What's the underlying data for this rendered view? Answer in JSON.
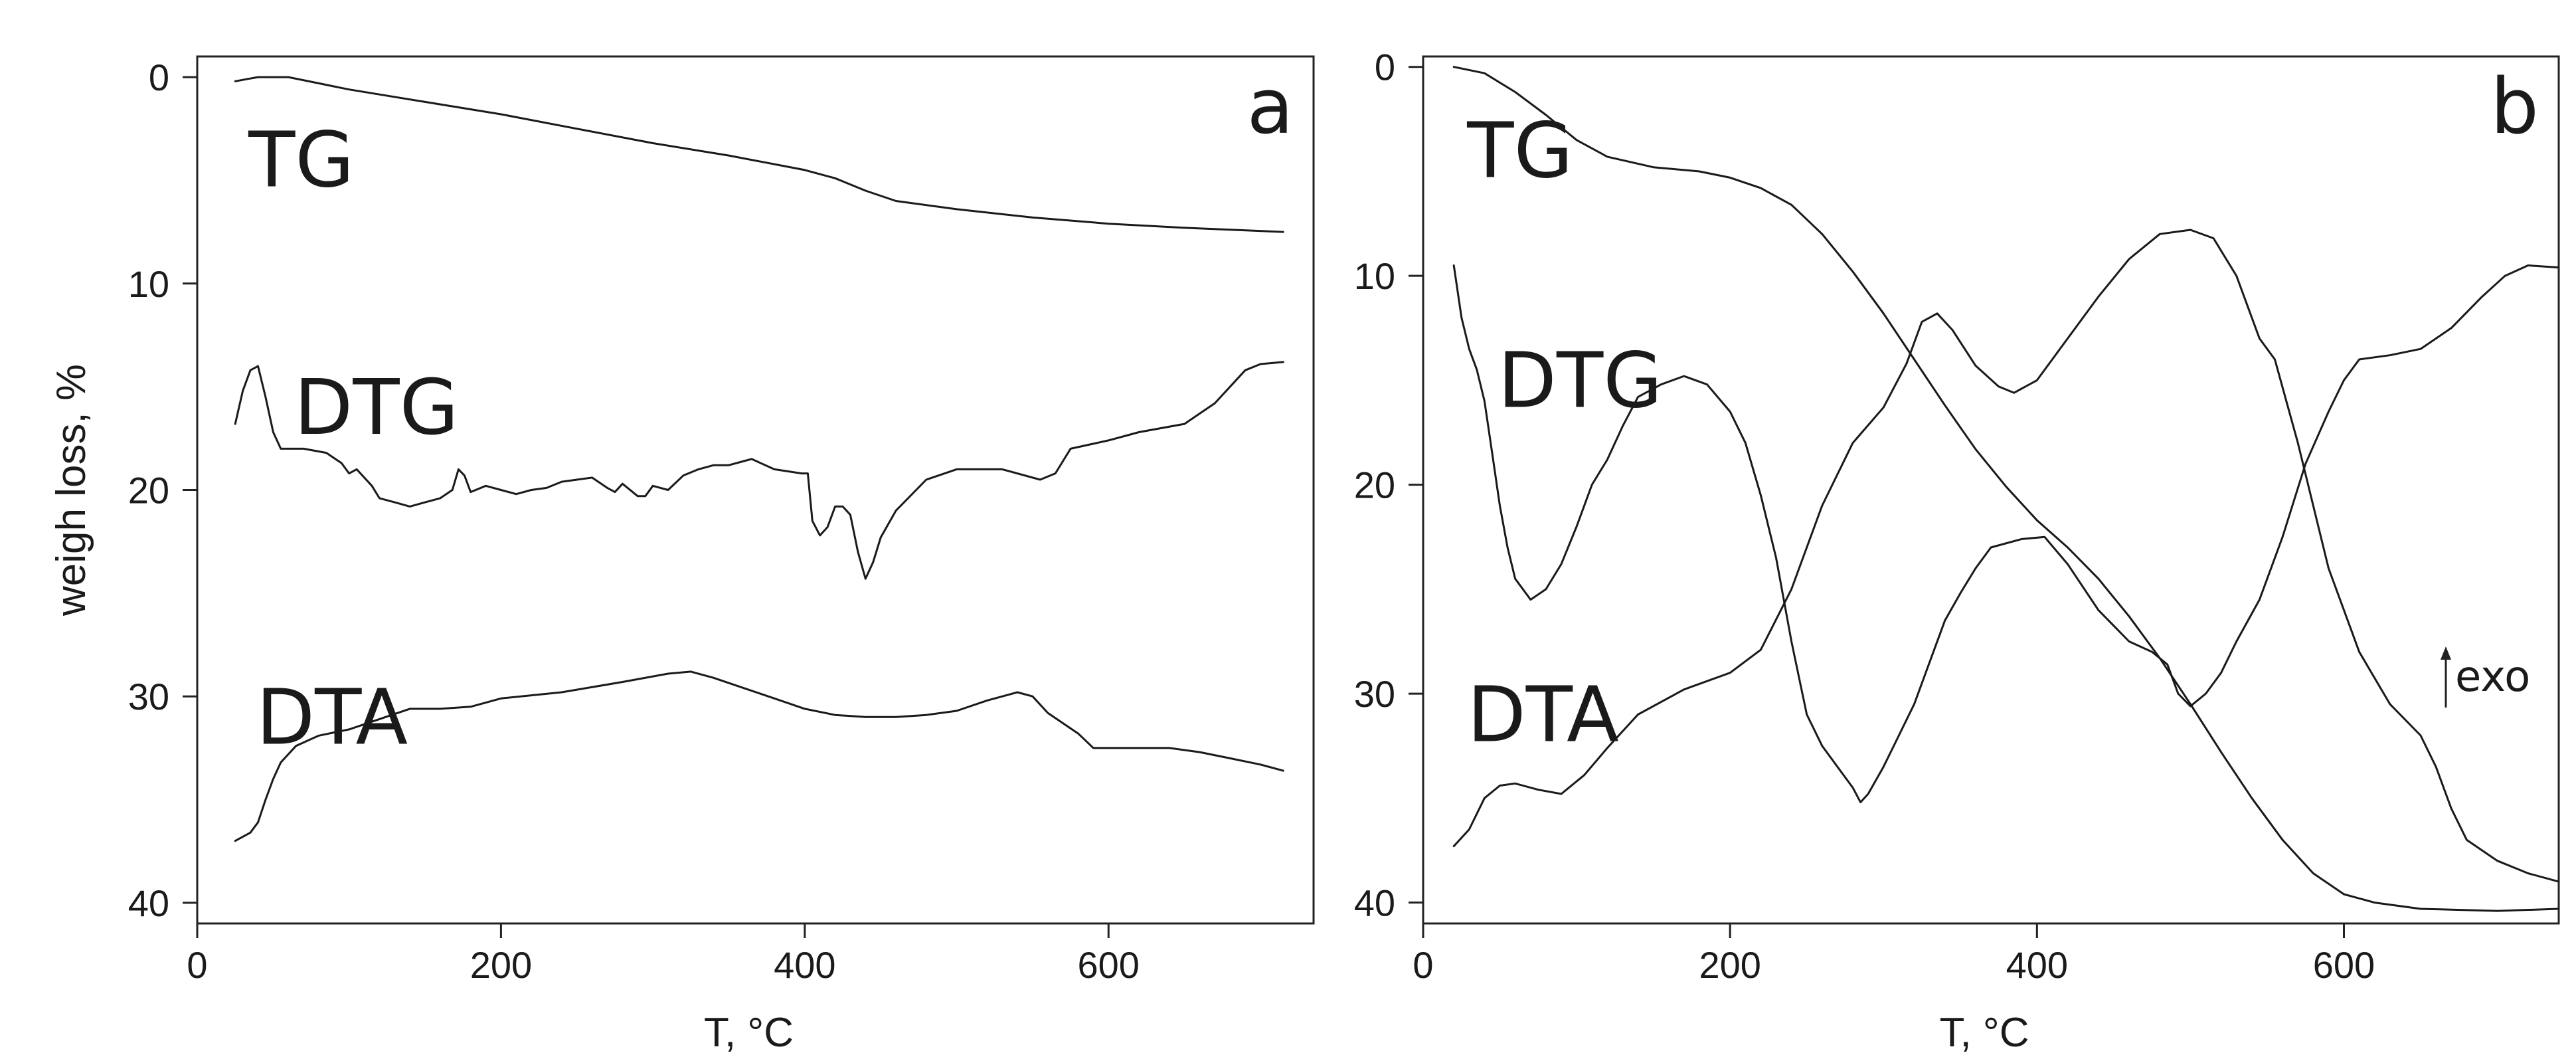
{
  "chart_data": [
    {
      "type": "line",
      "panel_label": "a",
      "xlabel": "T, °C",
      "ylabel": "weigh loss, %",
      "xlim": [
        0,
        735
      ],
      "ylim": [
        41,
        -1
      ],
      "xticks": [
        0,
        200,
        400,
        600
      ],
      "yticks": [
        0,
        10,
        20,
        30,
        40
      ],
      "grid": false,
      "series": [
        {
          "name": "TG",
          "label_at": [
            25,
            4
          ],
          "points": [
            [
              25,
              0.2
            ],
            [
              40,
              0
            ],
            [
              60,
              0
            ],
            [
              80,
              0.3
            ],
            [
              100,
              0.6
            ],
            [
              150,
              1.2
            ],
            [
              200,
              1.8
            ],
            [
              250,
              2.5
            ],
            [
              300,
              3.2
            ],
            [
              350,
              3.8
            ],
            [
              400,
              4.5
            ],
            [
              420,
              4.9
            ],
            [
              440,
              5.5
            ],
            [
              460,
              6.0
            ],
            [
              500,
              6.4
            ],
            [
              550,
              6.8
            ],
            [
              600,
              7.1
            ],
            [
              650,
              7.3
            ],
            [
              715,
              7.5
            ]
          ]
        },
        {
          "name": "DTG",
          "label_at": [
            55,
            16
          ],
          "points": [
            [
              25,
              16.8
            ],
            [
              30,
              15.2
            ],
            [
              35,
              14.2
            ],
            [
              40,
              14.0
            ],
            [
              45,
              15.5
            ],
            [
              50,
              17.2
            ],
            [
              55,
              18.0
            ],
            [
              70,
              18.0
            ],
            [
              85,
              18.2
            ],
            [
              95,
              18.7
            ],
            [
              100,
              19.2
            ],
            [
              105,
              19.0
            ],
            [
              115,
              19.8
            ],
            [
              120,
              20.4
            ],
            [
              130,
              20.6
            ],
            [
              140,
              20.8
            ],
            [
              150,
              20.6
            ],
            [
              160,
              20.4
            ],
            [
              168,
              20.0
            ],
            [
              172,
              19.0
            ],
            [
              176,
              19.3
            ],
            [
              180,
              20.1
            ],
            [
              190,
              19.8
            ],
            [
              200,
              20.0
            ],
            [
              210,
              20.2
            ],
            [
              220,
              20.0
            ],
            [
              230,
              19.9
            ],
            [
              240,
              19.6
            ],
            [
              250,
              19.5
            ],
            [
              260,
              19.4
            ],
            [
              270,
              19.9
            ],
            [
              275,
              20.1
            ],
            [
              280,
              19.7
            ],
            [
              290,
              20.3
            ],
            [
              295,
              20.3
            ],
            [
              300,
              19.8
            ],
            [
              310,
              20.0
            ],
            [
              320,
              19.3
            ],
            [
              330,
              19.0
            ],
            [
              340,
              18.8
            ],
            [
              350,
              18.8
            ],
            [
              360,
              18.6
            ],
            [
              365,
              18.5
            ],
            [
              380,
              19.0
            ],
            [
              398,
              19.2
            ],
            [
              402,
              19.2
            ],
            [
              405,
              21.5
            ],
            [
              410,
              22.2
            ],
            [
              415,
              21.8
            ],
            [
              420,
              20.8
            ],
            [
              425,
              20.8
            ],
            [
              430,
              21.2
            ],
            [
              435,
              23.0
            ],
            [
              440,
              24.3
            ],
            [
              445,
              23.5
            ],
            [
              450,
              22.3
            ],
            [
              460,
              21.0
            ],
            [
              480,
              19.5
            ],
            [
              500,
              19.0
            ],
            [
              530,
              19.0
            ],
            [
              555,
              19.5
            ],
            [
              565,
              19.2
            ],
            [
              575,
              18.0
            ],
            [
              600,
              17.6
            ],
            [
              620,
              17.2
            ],
            [
              650,
              16.8
            ],
            [
              670,
              15.8
            ],
            [
              690,
              14.2
            ],
            [
              700,
              13.9
            ],
            [
              715,
              13.8
            ]
          ]
        },
        {
          "name": "DTA",
          "label_at": [
            30,
            31
          ],
          "points": [
            [
              25,
              37.0
            ],
            [
              35,
              36.6
            ],
            [
              40,
              36.1
            ],
            [
              45,
              35.0
            ],
            [
              50,
              34.0
            ],
            [
              55,
              33.2
            ],
            [
              65,
              32.4
            ],
            [
              80,
              31.9
            ],
            [
              100,
              31.6
            ],
            [
              120,
              31.1
            ],
            [
              140,
              30.6
            ],
            [
              160,
              30.6
            ],
            [
              180,
              30.5
            ],
            [
              200,
              30.1
            ],
            [
              240,
              29.8
            ],
            [
              280,
              29.3
            ],
            [
              310,
              28.9
            ],
            [
              325,
              28.8
            ],
            [
              340,
              29.1
            ],
            [
              360,
              29.6
            ],
            [
              380,
              30.1
            ],
            [
              400,
              30.6
            ],
            [
              420,
              30.9
            ],
            [
              440,
              31.0
            ],
            [
              460,
              31.0
            ],
            [
              480,
              30.9
            ],
            [
              500,
              30.7
            ],
            [
              520,
              30.2
            ],
            [
              540,
              29.8
            ],
            [
              550,
              30.0
            ],
            [
              560,
              30.8
            ],
            [
              580,
              31.8
            ],
            [
              590,
              32.5
            ],
            [
              600,
              32.5
            ],
            [
              640,
              32.5
            ],
            [
              660,
              32.7
            ],
            [
              680,
              33.0
            ],
            [
              700,
              33.3
            ],
            [
              715,
              33.6
            ]
          ]
        }
      ]
    },
    {
      "type": "line",
      "panel_label": "b",
      "xlabel": "T, °C",
      "ylabel": "",
      "xlim": [
        0,
        740
      ],
      "ylim": [
        41,
        -0.5
      ],
      "xticks": [
        0,
        200,
        400,
        600
      ],
      "yticks": [
        0,
        10,
        20,
        30,
        40
      ],
      "grid": false,
      "annotation": "exo",
      "series": [
        {
          "name": "TG",
          "label_at": [
            20,
            4
          ],
          "points": [
            [
              20,
              0
            ],
            [
              40,
              0.3
            ],
            [
              60,
              1.2
            ],
            [
              80,
              2.3
            ],
            [
              100,
              3.5
            ],
            [
              120,
              4.3
            ],
            [
              150,
              4.8
            ],
            [
              180,
              5.0
            ],
            [
              200,
              5.3
            ],
            [
              220,
              5.8
            ],
            [
              240,
              6.6
            ],
            [
              260,
              8.0
            ],
            [
              280,
              9.8
            ],
            [
              300,
              11.8
            ],
            [
              320,
              14.0
            ],
            [
              340,
              16.2
            ],
            [
              360,
              18.3
            ],
            [
              380,
              20.1
            ],
            [
              400,
              21.7
            ],
            [
              420,
              23.0
            ],
            [
              440,
              24.5
            ],
            [
              460,
              26.3
            ],
            [
              480,
              28.3
            ],
            [
              500,
              30.5
            ],
            [
              520,
              32.8
            ],
            [
              540,
              35.0
            ],
            [
              560,
              37.0
            ],
            [
              580,
              38.6
            ],
            [
              600,
              39.6
            ],
            [
              620,
              40.0
            ],
            [
              650,
              40.3
            ],
            [
              700,
              40.4
            ],
            [
              740,
              40.3
            ]
          ]
        },
        {
          "name": "DTG",
          "label_at": [
            40,
            15
          ],
          "points": [
            [
              20,
              9.5
            ],
            [
              25,
              12.0
            ],
            [
              30,
              13.5
            ],
            [
              35,
              14.5
            ],
            [
              40,
              16.0
            ],
            [
              45,
              18.5
            ],
            [
              50,
              21.0
            ],
            [
              55,
              23.0
            ],
            [
              60,
              24.5
            ],
            [
              70,
              25.5
            ],
            [
              80,
              25.0
            ],
            [
              90,
              23.8
            ],
            [
              100,
              22.0
            ],
            [
              110,
              20.0
            ],
            [
              120,
              18.8
            ],
            [
              130,
              17.2
            ],
            [
              140,
              15.8
            ],
            [
              155,
              15.2
            ],
            [
              170,
              14.8
            ],
            [
              185,
              15.2
            ],
            [
              200,
              16.5
            ],
            [
              210,
              18.0
            ],
            [
              220,
              20.5
            ],
            [
              230,
              23.5
            ],
            [
              240,
              27.5
            ],
            [
              250,
              31.0
            ],
            [
              260,
              32.5
            ],
            [
              270,
              33.5
            ],
            [
              280,
              34.5
            ],
            [
              285,
              35.2
            ],
            [
              290,
              34.8
            ],
            [
              300,
              33.5
            ],
            [
              310,
              32.0
            ],
            [
              320,
              30.5
            ],
            [
              330,
              28.5
            ],
            [
              340,
              26.5
            ],
            [
              350,
              25.2
            ],
            [
              360,
              24.0
            ],
            [
              370,
              23.0
            ],
            [
              390,
              22.6
            ],
            [
              405,
              22.5
            ],
            [
              420,
              23.8
            ],
            [
              440,
              26.0
            ],
            [
              460,
              27.5
            ],
            [
              475,
              28.0
            ],
            [
              485,
              28.6
            ],
            [
              492,
              30.0
            ],
            [
              500,
              30.6
            ],
            [
              510,
              30.0
            ],
            [
              520,
              29.0
            ],
            [
              530,
              27.5
            ],
            [
              545,
              25.5
            ],
            [
              560,
              22.5
            ],
            [
              575,
              19.0
            ],
            [
              590,
              16.5
            ],
            [
              600,
              15.0
            ],
            [
              610,
              14.0
            ],
            [
              630,
              13.8
            ],
            [
              650,
              13.5
            ],
            [
              670,
              12.5
            ],
            [
              690,
              11.0
            ],
            [
              705,
              10.0
            ],
            [
              720,
              9.5
            ],
            [
              740,
              9.6
            ]
          ]
        },
        {
          "name": "DTA",
          "label_at": [
            20,
            31
          ],
          "points": [
            [
              20,
              37.3
            ],
            [
              30,
              36.5
            ],
            [
              40,
              35.0
            ],
            [
              50,
              34.4
            ],
            [
              60,
              34.3
            ],
            [
              75,
              34.6
            ],
            [
              90,
              34.8
            ],
            [
              105,
              33.9
            ],
            [
              120,
              32.6
            ],
            [
              140,
              31.0
            ],
            [
              170,
              29.8
            ],
            [
              200,
              29.0
            ],
            [
              220,
              27.9
            ],
            [
              240,
              25.0
            ],
            [
              260,
              21.0
            ],
            [
              280,
              18.0
            ],
            [
              300,
              16.3
            ],
            [
              315,
              14.2
            ],
            [
              325,
              12.2
            ],
            [
              335,
              11.8
            ],
            [
              345,
              12.6
            ],
            [
              360,
              14.3
            ],
            [
              375,
              15.3
            ],
            [
              385,
              15.6
            ],
            [
              400,
              15.0
            ],
            [
              420,
              13.0
            ],
            [
              440,
              11.0
            ],
            [
              460,
              9.2
            ],
            [
              480,
              8.0
            ],
            [
              500,
              7.8
            ],
            [
              515,
              8.2
            ],
            [
              530,
              10.0
            ],
            [
              545,
              13.0
            ],
            [
              555,
              14.0
            ],
            [
              570,
              18.0
            ],
            [
              590,
              24.0
            ],
            [
              610,
              28.0
            ],
            [
              630,
              30.5
            ],
            [
              650,
              32.0
            ],
            [
              660,
              33.5
            ],
            [
              670,
              35.5
            ],
            [
              680,
              37.0
            ],
            [
              700,
              38.0
            ],
            [
              720,
              38.6
            ],
            [
              740,
              39.0
            ]
          ]
        }
      ]
    }
  ]
}
